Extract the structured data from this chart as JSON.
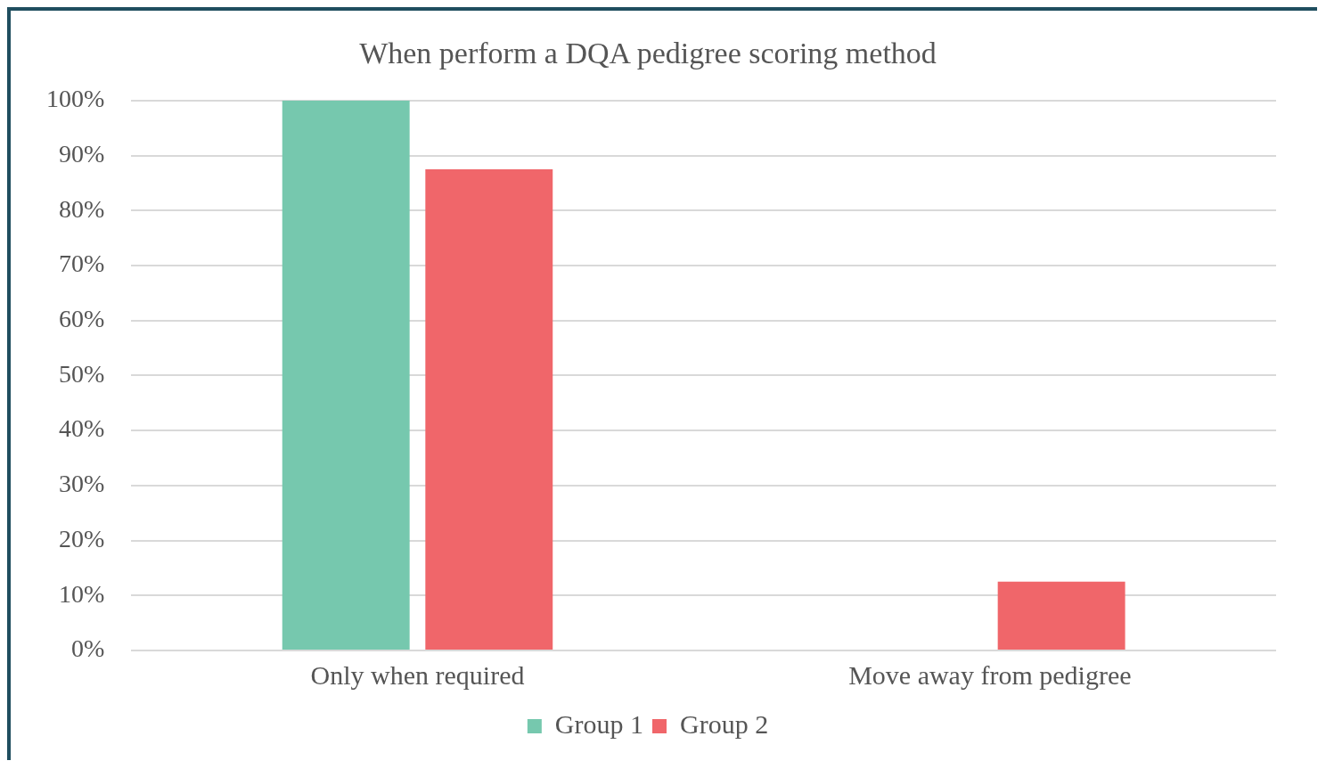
{
  "chart_data": {
    "type": "bar",
    "title": "When perform a DQA pedigree scoring method",
    "categories": [
      "Only when required",
      "Move away from pedigree"
    ],
    "series": [
      {
        "name": "Group 1",
        "color": "#76c8ae",
        "values": [
          100,
          0
        ]
      },
      {
        "name": "Group 2",
        "color": "#f0666a",
        "values": [
          87.5,
          12.5
        ]
      }
    ],
    "ylim": [
      0,
      100
    ],
    "yticks": [
      {
        "value": 0,
        "label": "0%"
      },
      {
        "value": 10,
        "label": "10%"
      },
      {
        "value": 20,
        "label": "20%"
      },
      {
        "value": 30,
        "label": "30%"
      },
      {
        "value": 40,
        "label": "40%"
      },
      {
        "value": 50,
        "label": "50%"
      },
      {
        "value": 60,
        "label": "60%"
      },
      {
        "value": 70,
        "label": "70%"
      },
      {
        "value": 80,
        "label": "80%"
      },
      {
        "value": 90,
        "label": "90%"
      },
      {
        "value": 100,
        "label": "100%"
      }
    ],
    "grid": "y",
    "legend": "bottom"
  }
}
